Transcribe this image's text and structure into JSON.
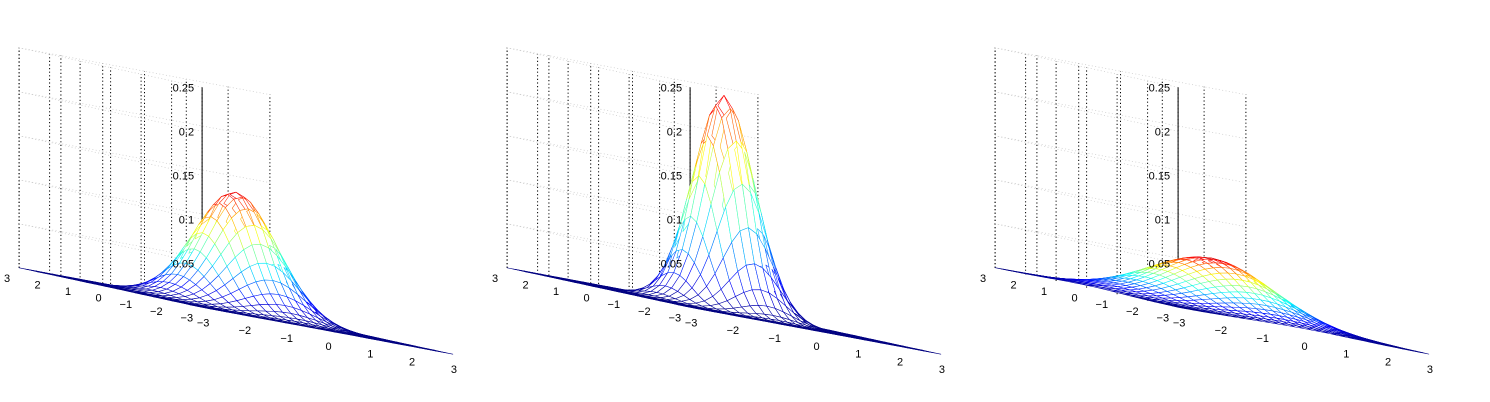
{
  "chart_data": [
    {
      "type": "surface",
      "mesh_color_map": "jet",
      "grid": true,
      "x": {
        "lim": [
          -3,
          3
        ],
        "ticks": [
          -3,
          -2,
          -1,
          0,
          1,
          2,
          3
        ],
        "tick_labels": [
          "−3",
          "−2",
          "−1",
          "0",
          "1",
          "2",
          "3"
        ]
      },
      "y": {
        "lim": [
          -3,
          3
        ],
        "ticks": [
          -3,
          -2,
          -1,
          0,
          1,
          2,
          3
        ],
        "tick_labels": [
          "−3",
          "−2",
          "−1",
          "0",
          "1",
          "2",
          "3"
        ]
      },
      "z": {
        "lim": [
          0,
          0.25
        ],
        "ticks": [
          0.05,
          0.1,
          0.15,
          0.2,
          0.25
        ],
        "tick_labels": [
          "0.05",
          "0.1",
          "0.15",
          "0.2",
          "0.25"
        ]
      },
      "surface": {
        "function": "bivariate gaussian",
        "center": [
          0,
          0
        ],
        "sigma_x": 0.8,
        "sigma_y": 0.8,
        "peak_z": 0.135
      }
    },
    {
      "type": "surface",
      "mesh_color_map": "jet",
      "grid": true,
      "x": {
        "lim": [
          -3,
          3
        ],
        "ticks": [
          -3,
          -2,
          -1,
          0,
          1,
          2,
          3
        ],
        "tick_labels": [
          "−3",
          "−2",
          "−1",
          "0",
          "1",
          "2",
          "3"
        ]
      },
      "y": {
        "lim": [
          -3,
          3
        ],
        "ticks": [
          -3,
          -2,
          -1,
          0,
          1,
          2,
          3
        ],
        "tick_labels": [
          "−3",
          "−2",
          "−1",
          "0",
          "1",
          "2",
          "3"
        ]
      },
      "z": {
        "lim": [
          0,
          0.25
        ],
        "ticks": [
          0.05,
          0.1,
          0.15,
          0.2,
          0.25
        ],
        "tick_labels": [
          "0.05",
          "0.1",
          "0.15",
          "0.2",
          "0.25"
        ]
      },
      "surface": {
        "function": "bivariate gaussian",
        "center": [
          0,
          0
        ],
        "sigma_x": 0.6,
        "sigma_y": 0.6,
        "peak_z": 0.245
      }
    },
    {
      "type": "surface",
      "mesh_color_map": "jet",
      "grid": true,
      "x": {
        "lim": [
          -3,
          3
        ],
        "ticks": [
          -3,
          -2,
          -1,
          0,
          1,
          2,
          3
        ],
        "tick_labels": [
          "−3",
          "−2",
          "−1",
          "0",
          "1",
          "2",
          "3"
        ]
      },
      "y": {
        "lim": [
          -3,
          3
        ],
        "ticks": [
          -3,
          -2,
          -1,
          0,
          1,
          2,
          3
        ],
        "tick_labels": [
          "−3",
          "−2",
          "−1",
          "0",
          "1",
          "2",
          "3"
        ]
      },
      "z": {
        "lim": [
          0,
          0.25
        ],
        "ticks": [
          0.05,
          0.1,
          0.15,
          0.2,
          0.25
        ],
        "tick_labels": [
          "0.05",
          "0.1",
          "0.15",
          "0.2",
          "0.25"
        ]
      },
      "surface": {
        "function": "bivariate gaussian",
        "center": [
          0,
          0
        ],
        "sigma_x": 1.2,
        "sigma_y": 1.2,
        "peak_z": 0.06
      }
    }
  ]
}
